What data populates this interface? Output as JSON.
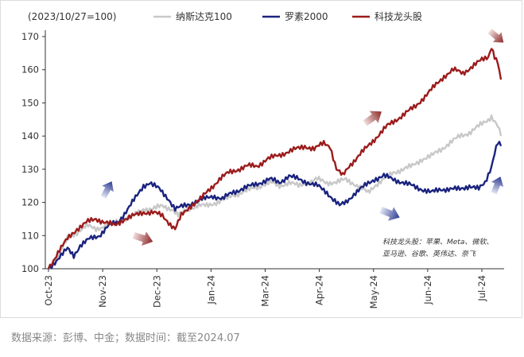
{
  "chart_data": {
    "type": "line",
    "index_note": "(2023/10/27=100)",
    "x_ticks": [
      "Oct-23",
      "Nov-23",
      "Dec-23",
      "Jan-24",
      "Mar-24",
      "Apr-24",
      "May-24",
      "Jun-24",
      "Jul-24"
    ],
    "y_ticks": [
      100,
      110,
      120,
      130,
      140,
      150,
      160,
      170
    ],
    "ylim": [
      100,
      170
    ],
    "grid": false,
    "legend_position": "top",
    "series": [
      {
        "name": "纳斯达克100",
        "color": "#c8c8c8",
        "values": [
          [
            0,
            100
          ],
          [
            3,
            104
          ],
          [
            6,
            109
          ],
          [
            9,
            111
          ],
          [
            12,
            113
          ],
          [
            15,
            112
          ],
          [
            18,
            113
          ],
          [
            21,
            114
          ],
          [
            24,
            115
          ],
          [
            27,
            116
          ],
          [
            30,
            118
          ],
          [
            33,
            118
          ],
          [
            36,
            119
          ],
          [
            39,
            118
          ],
          [
            41,
            116
          ],
          [
            44,
            118
          ],
          [
            47,
            119
          ],
          [
            50,
            119
          ],
          [
            53,
            120
          ],
          [
            56,
            121
          ],
          [
            58,
            122
          ],
          [
            61,
            123
          ],
          [
            64,
            124
          ],
          [
            67,
            125
          ],
          [
            70,
            126
          ],
          [
            73,
            125
          ],
          [
            76,
            126
          ],
          [
            79,
            125
          ],
          [
            82,
            126
          ],
          [
            85,
            127
          ],
          [
            88,
            126
          ],
          [
            91,
            126
          ],
          [
            94,
            127
          ],
          [
            96,
            126
          ],
          [
            99,
            124
          ],
          [
            101,
            123
          ],
          [
            103,
            125
          ],
          [
            106,
            127
          ],
          [
            109,
            129
          ],
          [
            112,
            130
          ],
          [
            115,
            131
          ],
          [
            118,
            133
          ],
          [
            121,
            134
          ],
          [
            124,
            136
          ],
          [
            127,
            138
          ],
          [
            130,
            140
          ],
          [
            133,
            141
          ],
          [
            136,
            143
          ],
          [
            139,
            145
          ],
          [
            140,
            146
          ],
          [
            142,
            143
          ],
          [
            143,
            140
          ]
        ]
      },
      {
        "name": "罗素2000",
        "color": "#1a237e",
        "values": [
          [
            0,
            100
          ],
          [
            3,
            103
          ],
          [
            6,
            106
          ],
          [
            8,
            104
          ],
          [
            10,
            107
          ],
          [
            13,
            109
          ],
          [
            16,
            110
          ],
          [
            19,
            113
          ],
          [
            22,
            114
          ],
          [
            25,
            118
          ],
          [
            28,
            122
          ],
          [
            30,
            125
          ],
          [
            32,
            126
          ],
          [
            35,
            124
          ],
          [
            38,
            121
          ],
          [
            40,
            118
          ],
          [
            43,
            119
          ],
          [
            46,
            120
          ],
          [
            49,
            121
          ],
          [
            52,
            122
          ],
          [
            55,
            121
          ],
          [
            58,
            123
          ],
          [
            61,
            124
          ],
          [
            64,
            125
          ],
          [
            67,
            126
          ],
          [
            70,
            127
          ],
          [
            73,
            126
          ],
          [
            76,
            128
          ],
          [
            79,
            127
          ],
          [
            82,
            126
          ],
          [
            85,
            125
          ],
          [
            88,
            123
          ],
          [
            90,
            121
          ],
          [
            92,
            119
          ],
          [
            94,
            120
          ],
          [
            97,
            123
          ],
          [
            100,
            125
          ],
          [
            103,
            127
          ],
          [
            106,
            128
          ],
          [
            109,
            127
          ],
          [
            112,
            126
          ],
          [
            115,
            125
          ],
          [
            118,
            124
          ],
          [
            121,
            123
          ],
          [
            124,
            124
          ],
          [
            127,
            124
          ],
          [
            130,
            124
          ],
          [
            133,
            125
          ],
          [
            136,
            124
          ],
          [
            138,
            126
          ],
          [
            140,
            131
          ],
          [
            141,
            135
          ],
          [
            142,
            138
          ],
          [
            143,
            137
          ]
        ]
      },
      {
        "name": "科技龙头股",
        "color": "#9b1c1c",
        "values": [
          [
            0,
            100
          ],
          [
            3,
            105
          ],
          [
            6,
            109
          ],
          [
            9,
            112
          ],
          [
            12,
            114
          ],
          [
            15,
            115
          ],
          [
            18,
            114
          ],
          [
            21,
            113
          ],
          [
            24,
            115
          ],
          [
            27,
            116
          ],
          [
            30,
            117
          ],
          [
            33,
            117
          ],
          [
            36,
            116
          ],
          [
            38,
            114
          ],
          [
            40,
            112
          ],
          [
            42,
            116
          ],
          [
            45,
            119
          ],
          [
            48,
            121
          ],
          [
            51,
            124
          ],
          [
            54,
            127
          ],
          [
            57,
            129
          ],
          [
            60,
            130
          ],
          [
            63,
            131
          ],
          [
            66,
            131
          ],
          [
            69,
            133
          ],
          [
            72,
            134
          ],
          [
            75,
            135
          ],
          [
            78,
            136
          ],
          [
            81,
            137
          ],
          [
            84,
            136
          ],
          [
            87,
            138
          ],
          [
            89,
            137
          ],
          [
            91,
            130
          ],
          [
            93,
            128
          ],
          [
            95,
            131
          ],
          [
            98,
            134
          ],
          [
            101,
            137
          ],
          [
            104,
            140
          ],
          [
            107,
            143
          ],
          [
            110,
            145
          ],
          [
            113,
            147
          ],
          [
            116,
            149
          ],
          [
            119,
            152
          ],
          [
            122,
            155
          ],
          [
            125,
            158
          ],
          [
            128,
            160
          ],
          [
            131,
            159
          ],
          [
            134,
            161
          ],
          [
            137,
            163
          ],
          [
            139,
            164
          ],
          [
            140,
            167
          ],
          [
            141,
            164
          ],
          [
            142,
            162
          ],
          [
            143,
            157
          ]
        ]
      }
    ]
  },
  "annotation": {
    "line1": "科技龙头股：苹果、Meta、微软、",
    "line2": "亚马逊、谷歌、英伟达、奈飞"
  },
  "source": "数据来源：彭博、中金；数据时间：截至2024.07",
  "arrow_colors": {
    "red_from": "#f2dede",
    "red_to": "#8b2525",
    "blue_from": "#e3e6f5",
    "blue_to": "#2b3990"
  }
}
